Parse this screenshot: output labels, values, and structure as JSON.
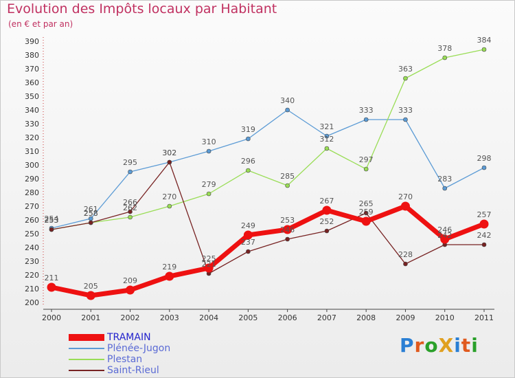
{
  "header": {
    "title": "Evolution des Impôts locaux par Habitant",
    "subtitle": "(en € et par an)"
  },
  "logo": {
    "text": "ProXiti",
    "letters": [
      "P",
      "r",
      "o",
      "X",
      "i",
      "t",
      "i"
    ],
    "colors": [
      "#2a7fd4",
      "#e05a1e",
      "#2aa02a",
      "#e0a020",
      "#2a7fd4",
      "#e05a1e",
      "#2aa02a"
    ]
  },
  "chart_data": {
    "type": "line",
    "title": "Evolution des Impôts locaux par Habitant",
    "subtitle": "(en € et par an)",
    "xlabel": "",
    "ylabel": "",
    "categories": [
      "2000",
      "2001",
      "2002",
      "2003",
      "2004",
      "2005",
      "2006",
      "2007",
      "2008",
      "2009",
      "2010",
      "2011"
    ],
    "ylim": [
      200,
      390
    ],
    "yticks": [
      200,
      210,
      220,
      230,
      240,
      250,
      260,
      270,
      280,
      290,
      300,
      310,
      320,
      330,
      340,
      350,
      360,
      370,
      380,
      390
    ],
    "grid": false,
    "legend_position": "bottom-left",
    "series": [
      {
        "name": "TRAMAIN",
        "color": "#ee1111",
        "legend_color": "#2222cc",
        "values": [
          211,
          205,
          209,
          219,
          225,
          249,
          253,
          267,
          259,
          270,
          246,
          257
        ],
        "labels": [
          "211",
          "205",
          "209",
          "219",
          "225",
          "249",
          "253",
          "267",
          "259",
          "270",
          "246",
          "257"
        ]
      },
      {
        "name": "Plénée-Jugon",
        "color": "#5b9bd5",
        "legend_color": "#5b6bd5",
        "values": [
          254,
          261,
          295,
          302,
          310,
          319,
          340,
          321,
          333,
          333,
          283,
          298
        ],
        "labels": [
          "254",
          "261",
          "295",
          "302",
          "310",
          "319",
          "340",
          "321",
          "333",
          "333",
          "283",
          "298"
        ]
      },
      {
        "name": "Plestan",
        "color": "#99dd55",
        "legend_color": "#5b6bd5",
        "values": [
          253,
          258,
          262,
          270,
          279,
          296,
          285,
          312,
          297,
          363,
          378,
          384
        ],
        "labels": [
          "253",
          "258",
          "262",
          "270",
          "279",
          "296",
          "285",
          "312",
          "297",
          "363",
          "378",
          "384"
        ]
      },
      {
        "name": "Saint-Rieul",
        "color": "#772222",
        "legend_color": "#5b6bd5",
        "values": [
          253,
          258,
          266,
          302,
          221,
          237,
          246,
          252,
          265,
          228,
          242,
          242
        ],
        "labels": [
          "253",
          "258",
          "266",
          "302",
          "221",
          "237",
          "246",
          "252",
          "265",
          "228",
          "242",
          "242"
        ]
      }
    ]
  }
}
